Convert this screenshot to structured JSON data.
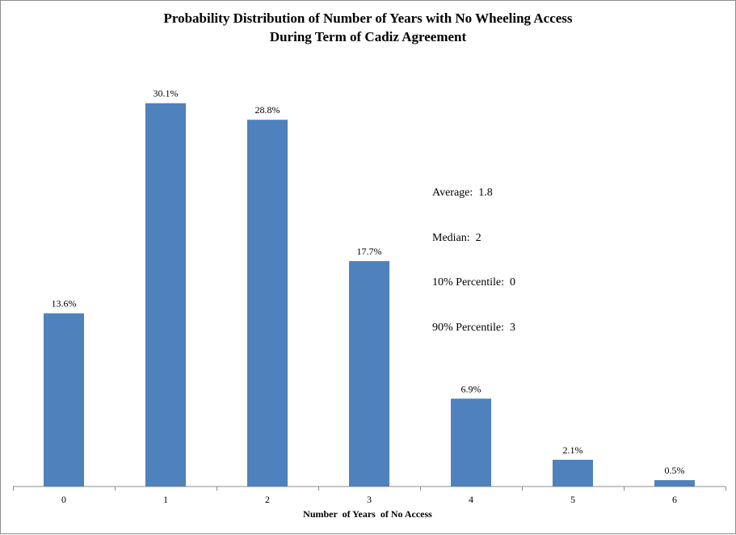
{
  "chart_data": {
    "type": "bar",
    "title": "Probability Distribution of Number of Years with No Wheeling Access",
    "subtitle": "During Term of Cadiz Agreement",
    "xlabel": "Number  of Years  of No Access",
    "ylabel": "",
    "categories": [
      "0",
      "1",
      "2",
      "3",
      "4",
      "5",
      "6"
    ],
    "values": [
      13.6,
      30.1,
      28.8,
      17.7,
      6.9,
      2.1,
      0.5
    ],
    "value_labels": [
      "13.6%",
      "30.1%",
      "28.8%",
      "17.7%",
      "6.9%",
      "2.1%",
      "0.5%"
    ],
    "ylim": [
      0,
      33
    ],
    "bar_color": "#4f81bd",
    "grid": false,
    "legend": "none",
    "annotation": [
      {
        "label": "Average:",
        "value": "1.8"
      },
      {
        "label": "Median:",
        "value": "2"
      },
      {
        "label": "10% Percentile:",
        "value": "0"
      },
      {
        "label": "90% Percentile:",
        "value": "3"
      }
    ]
  }
}
